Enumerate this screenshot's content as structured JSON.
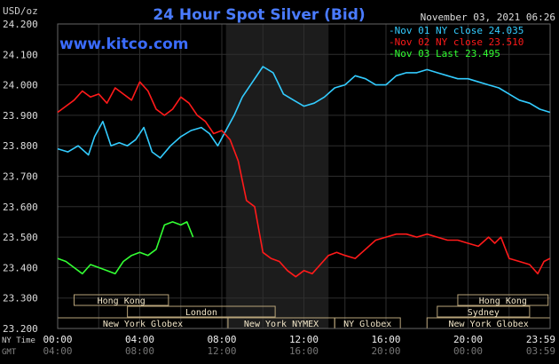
{
  "chart_data": {
    "type": "line",
    "title": "24 Hour Spot Silver (Bid)",
    "ylabel": "USD/oz",
    "watermark": "www.kitco.com",
    "timestamp": "November 03, 2021 06:26",
    "ylim": [
      23.2,
      24.2
    ],
    "yticks": [
      "24.200",
      "24.100",
      "24.000",
      "23.900",
      "23.800",
      "23.700",
      "23.600",
      "23.500",
      "23.400",
      "23.300",
      "23.200"
    ],
    "xlim": [
      0,
      24
    ],
    "time_rows": [
      {
        "label": "NY Time",
        "ticks": [
          "00:00",
          "04:00",
          "08:00",
          "12:00",
          "16:00",
          "20:00",
          "23:59"
        ]
      },
      {
        "label": "GMT",
        "ticks": [
          "04:00",
          "08:00",
          "12:00",
          "16:00",
          "20:00",
          "00:00",
          "03:59"
        ]
      }
    ],
    "shaded_hours": [
      8.2,
      13.2
    ],
    "legend": [
      {
        "text": "Nov 01 NY close 24.035",
        "color": "#33ccff"
      },
      {
        "text": "Nov 02 NY close 23.510",
        "color": "#ff1a1a"
      },
      {
        "text": "Nov 03 Last 23.495",
        "color": "#33ff33"
      }
    ],
    "sessions": [
      {
        "name": "Hong Kong",
        "row": 0,
        "start": 0.8,
        "end": 5.4
      },
      {
        "name": "Hong Kong",
        "row": 0,
        "start": 19.5,
        "end": 23.9
      },
      {
        "name": "London",
        "row": 1,
        "start": 3.4,
        "end": 10.6
      },
      {
        "name": "Sydney",
        "row": 1,
        "start": 18.5,
        "end": 23.0
      },
      {
        "name": "New York Globex",
        "row": 2,
        "start": 0,
        "end": 8.3
      },
      {
        "name": "New York NYMEX",
        "row": 2,
        "start": 8.3,
        "end": 13.5
      },
      {
        "name": "NY Globex",
        "row": 2,
        "start": 13.5,
        "end": 16.7
      },
      {
        "name": "New York Globex",
        "row": 2,
        "start": 18.0,
        "end": 24
      }
    ],
    "series": [
      {
        "color": "#33ccff",
        "x": [
          0,
          0.5,
          1.0,
          1.5,
          1.8,
          2.2,
          2.6,
          3.0,
          3.4,
          3.8,
          4.2,
          4.6,
          5.0,
          5.5,
          6.0,
          6.5,
          7.0,
          7.4,
          7.8,
          8.2,
          8.6,
          9.0,
          9.5,
          10.0,
          10.5,
          11.0,
          11.5,
          12.0,
          12.5,
          13.0,
          13.5,
          14.0,
          14.5,
          15.0,
          15.5,
          16.0,
          16.5,
          17.0,
          17.5,
          18.0,
          18.5,
          19.0,
          19.5,
          20.0,
          20.5,
          21.0,
          21.5,
          22.0,
          22.5,
          23.0,
          23.5,
          23.99
        ],
        "y": [
          23.79,
          23.78,
          23.8,
          23.77,
          23.83,
          23.88,
          23.8,
          23.81,
          23.8,
          23.82,
          23.86,
          23.78,
          23.76,
          23.8,
          23.83,
          23.85,
          23.86,
          23.84,
          23.8,
          23.85,
          23.9,
          23.96,
          24.01,
          24.06,
          24.04,
          23.97,
          23.95,
          23.93,
          23.94,
          23.96,
          23.99,
          24.0,
          24.03,
          24.02,
          24.0,
          24.0,
          24.03,
          24.04,
          24.04,
          24.05,
          24.04,
          24.03,
          24.02,
          24.02,
          24.01,
          24.0,
          23.99,
          23.97,
          23.95,
          23.94,
          23.92,
          23.91
        ]
      },
      {
        "color": "#ff1a1a",
        "x": [
          0,
          0.4,
          0.8,
          1.2,
          1.6,
          2.0,
          2.4,
          2.8,
          3.2,
          3.6,
          4.0,
          4.4,
          4.8,
          5.2,
          5.6,
          6.0,
          6.4,
          6.8,
          7.2,
          7.6,
          8.0,
          8.4,
          8.8,
          9.2,
          9.6,
          10.0,
          10.4,
          10.8,
          11.2,
          11.6,
          12.0,
          12.4,
          12.8,
          13.2,
          13.6,
          14.0,
          14.5,
          15.0,
          15.5,
          16.0,
          16.5,
          17.0,
          17.5,
          18.0,
          18.5,
          19.0,
          19.5,
          20.0,
          20.5,
          21.0,
          21.3,
          21.6,
          22.0,
          22.5,
          23.0,
          23.4,
          23.7,
          23.99
        ],
        "y": [
          23.91,
          23.93,
          23.95,
          23.98,
          23.96,
          23.97,
          23.94,
          23.99,
          23.97,
          23.95,
          24.01,
          23.98,
          23.92,
          23.9,
          23.92,
          23.96,
          23.94,
          23.9,
          23.88,
          23.84,
          23.85,
          23.82,
          23.75,
          23.62,
          23.6,
          23.45,
          23.43,
          23.42,
          23.39,
          23.37,
          23.39,
          23.38,
          23.41,
          23.44,
          23.45,
          23.44,
          23.43,
          23.46,
          23.49,
          23.5,
          23.51,
          23.51,
          23.5,
          23.51,
          23.5,
          23.49,
          23.49,
          23.48,
          23.47,
          23.5,
          23.48,
          23.5,
          23.43,
          23.42,
          23.41,
          23.38,
          23.42,
          23.43
        ]
      },
      {
        "color": "#33ff33",
        "x": [
          0,
          0.4,
          0.8,
          1.2,
          1.6,
          2.0,
          2.4,
          2.8,
          3.2,
          3.6,
          4.0,
          4.4,
          4.8,
          5.2,
          5.6,
          6.0,
          6.3,
          6.6
        ],
        "y": [
          23.43,
          23.42,
          23.4,
          23.38,
          23.41,
          23.4,
          23.39,
          23.38,
          23.42,
          23.44,
          23.45,
          23.44,
          23.46,
          23.54,
          23.55,
          23.54,
          23.55,
          23.5
        ]
      }
    ]
  }
}
